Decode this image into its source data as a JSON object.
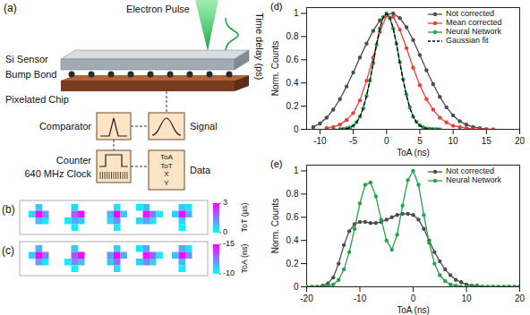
{
  "diagram": {
    "panel": "(a)",
    "electron_pulse": "Electron Pulse",
    "time_delay": "Time delay (ps)",
    "si_sensor": "Si Sensor",
    "bump_bond": "Bump Bond",
    "pixelated_chip": "Pixelated Chip",
    "comparator": "Comparator",
    "signal": "Signal",
    "counter": "Counter",
    "clock": "640 MHz Clock",
    "data_fields": [
      "ToA",
      "ToT",
      "X",
      "Y"
    ],
    "data": "Data"
  },
  "pixel_maps": [
    {
      "panel": "(b)",
      "colorbar": {
        "label": "ToT (µs)",
        "range": [
          0,
          3
        ],
        "ticks": [
          3,
          0
        ]
      },
      "clusters": [
        [
          [
            1,
            0,
            0.6
          ],
          [
            0,
            1,
            0.4
          ],
          [
            1,
            1,
            2.9
          ],
          [
            2,
            1,
            1.2
          ],
          [
            1,
            2,
            0.8
          ],
          [
            2,
            2,
            0.3
          ]
        ],
        [
          [
            1,
            0,
            0.5
          ],
          [
            1,
            1,
            1.8
          ],
          [
            2,
            1,
            2.8
          ],
          [
            0,
            2,
            0.3
          ],
          [
            1,
            2,
            1.0
          ],
          [
            2,
            2,
            0.6
          ],
          [
            1,
            3,
            0.2
          ]
        ],
        [
          [
            2,
            0,
            0.4
          ],
          [
            1,
            1,
            0.9
          ],
          [
            2,
            1,
            3.0
          ],
          [
            3,
            1,
            0.7
          ],
          [
            1,
            2,
            0.5
          ],
          [
            2,
            2,
            1.4
          ],
          [
            2,
            3,
            0.3
          ]
        ],
        [
          [
            0,
            0,
            0.3
          ],
          [
            1,
            0,
            0.8
          ],
          [
            1,
            1,
            2.7
          ],
          [
            2,
            1,
            1.5
          ],
          [
            0,
            2,
            0.5
          ],
          [
            1,
            2,
            1.1
          ],
          [
            2,
            2,
            0.4
          ],
          [
            3,
            1,
            0.2
          ]
        ],
        [
          [
            1,
            0,
            0.7
          ],
          [
            2,
            0,
            0.3
          ],
          [
            0,
            1,
            0.5
          ],
          [
            1,
            1,
            2.9
          ],
          [
            2,
            1,
            1.0
          ],
          [
            1,
            2,
            0.6
          ],
          [
            1,
            3,
            0.2
          ]
        ]
      ]
    },
    {
      "panel": "(c)",
      "colorbar": {
        "label": "ToA (ns)",
        "range": [
          -10,
          -15
        ],
        "ticks": [
          -15,
          -10
        ]
      },
      "clusters": [
        [
          [
            1,
            0,
            -11.5
          ],
          [
            0,
            1,
            -10.8
          ],
          [
            1,
            1,
            -15
          ],
          [
            2,
            1,
            -12.6
          ],
          [
            1,
            2,
            -11.9
          ],
          [
            2,
            2,
            -10.5
          ]
        ],
        [
          [
            1,
            0,
            -11.0
          ],
          [
            1,
            1,
            -13.4
          ],
          [
            2,
            1,
            -14.8
          ],
          [
            0,
            2,
            -10.4
          ],
          [
            1,
            2,
            -12.2
          ],
          [
            2,
            2,
            -11.3
          ],
          [
            1,
            3,
            -10.2
          ]
        ],
        [
          [
            2,
            0,
            -10.9
          ],
          [
            1,
            1,
            -12.0
          ],
          [
            2,
            1,
            -15
          ],
          [
            3,
            1,
            -11.6
          ],
          [
            1,
            2,
            -11.1
          ],
          [
            2,
            2,
            -13.0
          ],
          [
            2,
            3,
            -10.6
          ]
        ],
        [
          [
            0,
            0,
            -10.5
          ],
          [
            1,
            0,
            -11.8
          ],
          [
            1,
            1,
            -14.6
          ],
          [
            2,
            1,
            -13.2
          ],
          [
            0,
            2,
            -11.0
          ],
          [
            1,
            2,
            -12.4
          ],
          [
            2,
            2,
            -10.9
          ],
          [
            3,
            1,
            -10.3
          ]
        ],
        [
          [
            1,
            0,
            -11.7
          ],
          [
            2,
            0,
            -10.6
          ],
          [
            0,
            1,
            -11.2
          ],
          [
            1,
            1,
            -14.9
          ],
          [
            2,
            1,
            -12.3
          ],
          [
            1,
            2,
            -11.4
          ],
          [
            1,
            3,
            -10.4
          ]
        ]
      ]
    }
  ],
  "chart_data": [
    {
      "panel": "(d)",
      "type": "line",
      "x_label": "ToA (ns)",
      "y_label": "Norm. Counts",
      "xlim": [
        -12,
        20
      ],
      "xticks": [
        -10,
        -5,
        0,
        5,
        10,
        15,
        20
      ],
      "ylim": [
        0,
        1.05
      ],
      "yticks": [
        0,
        0.2,
        0.4,
        0.6,
        0.8,
        1
      ],
      "legend": "top-right",
      "series": [
        {
          "name": "Not corrected",
          "color": "#4d4d4d",
          "marker": "circle",
          "line_style": "solid",
          "x": [
            -11,
            -10,
            -9,
            -8,
            -7,
            -6,
            -5,
            -4,
            -3,
            -2,
            -1,
            0,
            1,
            2,
            3,
            4,
            5,
            6,
            7,
            8,
            9,
            10,
            11,
            12,
            13,
            14,
            15
          ],
          "values": [
            0.02,
            0.05,
            0.1,
            0.17,
            0.26,
            0.37,
            0.49,
            0.62,
            0.74,
            0.85,
            0.94,
            0.99,
            1.0,
            0.96,
            0.88,
            0.77,
            0.64,
            0.51,
            0.39,
            0.28,
            0.19,
            0.12,
            0.07,
            0.04,
            0.02,
            0.01,
            0
          ]
        },
        {
          "name": "Mean corrected",
          "color": "#e8413c",
          "marker": "circle",
          "line_style": "solid",
          "x": [
            -9,
            -8,
            -7,
            -6,
            -5,
            -4,
            -3,
            -2,
            -1,
            0,
            1,
            2,
            3,
            4,
            5,
            6,
            7,
            8,
            9,
            10,
            11,
            12,
            13,
            14,
            15,
            16
          ],
          "values": [
            0.01,
            0.02,
            0.04,
            0.08,
            0.14,
            0.25,
            0.42,
            0.62,
            0.84,
            0.98,
            0.97,
            0.86,
            0.7,
            0.53,
            0.38,
            0.26,
            0.17,
            0.1,
            0.06,
            0.03,
            0.02,
            0.01,
            0,
            0,
            0,
            0
          ]
        },
        {
          "name": "Neural Network",
          "color": "#2aa14f",
          "marker": "circle",
          "line_style": "solid",
          "x": [
            -7,
            -6.5,
            -6,
            -5.5,
            -5,
            -4.5,
            -4,
            -3.5,
            -3,
            -2.5,
            -2,
            -1.5,
            -1,
            -0.5,
            0,
            0.5,
            1,
            1.5,
            2,
            2.5,
            3,
            3.5,
            4,
            4.5,
            5,
            5.5,
            6,
            6.5,
            7,
            7.5,
            8
          ],
          "values": [
            0.002,
            0.004,
            0.008,
            0.016,
            0.03,
            0.062,
            0.11,
            0.18,
            0.29,
            0.42,
            0.57,
            0.73,
            0.87,
            0.97,
            1,
            0.96,
            0.87,
            0.74,
            0.58,
            0.43,
            0.3,
            0.19,
            0.11,
            0.065,
            0.035,
            0.018,
            0.009,
            0.005,
            0.003,
            0.002,
            0.001
          ]
        },
        {
          "name": "Gaussian fit",
          "color": "#000000",
          "marker": "none",
          "line_style": "dashed",
          "x": [
            -8,
            -7.5,
            -7,
            -6.5,
            -6,
            -5.5,
            -5,
            -4.5,
            -4,
            -3.5,
            -3,
            -2.5,
            -2,
            -1.5,
            -1,
            -0.5,
            0,
            0.5,
            1,
            1.5,
            2,
            2.5,
            3,
            3.5,
            4,
            4.5,
            5,
            5.5,
            6,
            6.5,
            7,
            7.5,
            8
          ],
          "values": [
            0.0001,
            0.0004,
            0.0011,
            0.0029,
            0.0067,
            0.015,
            0.031,
            0.06,
            0.108,
            0.183,
            0.287,
            0.42,
            0.574,
            0.732,
            0.87,
            0.966,
            1,
            0.966,
            0.87,
            0.732,
            0.574,
            0.42,
            0.287,
            0.183,
            0.108,
            0.06,
            0.031,
            0.015,
            0.0067,
            0.0029,
            0.0011,
            0.0004,
            0.0001
          ]
        }
      ]
    },
    {
      "panel": "(e)",
      "type": "line",
      "x_label": "ToA (ns)",
      "y_label": "Norm. Counts",
      "xlim": [
        -20,
        20
      ],
      "xticks": [
        -20,
        -10,
        0,
        10,
        20
      ],
      "ylim": [
        0,
        1.05
      ],
      "yticks": [
        0,
        0.2,
        0.4,
        0.6,
        0.8,
        1
      ],
      "legend": "top-right",
      "series": [
        {
          "name": "Not corrected",
          "color": "#4d4d4d",
          "marker": "circle",
          "line_style": "solid",
          "x": [
            -20,
            -19,
            -18,
            -17,
            -16,
            -15,
            -14,
            -13,
            -12,
            -11,
            -10,
            -9,
            -8,
            -7,
            -6,
            -5,
            -4,
            -3,
            -2,
            -1,
            0,
            1,
            2,
            3,
            4,
            5,
            6,
            7,
            8,
            9,
            10,
            11,
            12,
            13,
            14,
            15,
            16,
            17,
            18,
            19,
            20
          ],
          "values": [
            0,
            0,
            0,
            0.01,
            0.03,
            0.08,
            0.2,
            0.36,
            0.48,
            0.54,
            0.56,
            0.56,
            0.55,
            0.55,
            0.56,
            0.58,
            0.6,
            0.62,
            0.63,
            0.63,
            0.62,
            0.58,
            0.5,
            0.4,
            0.3,
            0.22,
            0.15,
            0.1,
            0.06,
            0.04,
            0.02,
            0.01,
            0.01,
            0,
            0,
            0,
            0,
            0,
            0,
            0,
            0
          ]
        },
        {
          "name": "Neural Network",
          "color": "#2aa14f",
          "marker": "circle",
          "line_style": "solid",
          "x": [
            -20,
            -19,
            -18,
            -17,
            -16,
            -15,
            -14,
            -13,
            -12,
            -11,
            -10,
            -9,
            -8,
            -7,
            -6,
            -5,
            -4,
            -3,
            -2,
            -1,
            0,
            1,
            2,
            3,
            4,
            5,
            6,
            7,
            8,
            9,
            10,
            11,
            12,
            13,
            14,
            15,
            16,
            17,
            18,
            19,
            20
          ],
          "values": [
            0,
            0,
            0,
            0,
            0.01,
            0.02,
            0.06,
            0.15,
            0.3,
            0.5,
            0.72,
            0.88,
            0.9,
            0.78,
            0.58,
            0.4,
            0.32,
            0.45,
            0.7,
            0.92,
            1,
            0.88,
            0.62,
            0.38,
            0.2,
            0.1,
            0.05,
            0.02,
            0.01,
            0,
            0,
            0,
            0,
            0,
            0,
            0,
            0,
            0,
            0,
            0,
            0
          ]
        }
      ]
    }
  ]
}
